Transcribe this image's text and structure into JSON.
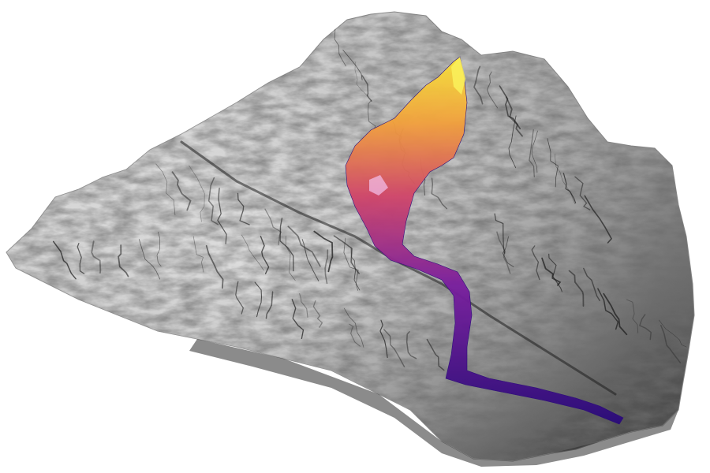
{
  "scene": {
    "subject": "terrain-relief-with-flow",
    "colors": {
      "background": "#ffffff",
      "terrain_light": "#e2e2e2",
      "terrain_mid": "#a8a8a8",
      "terrain_dark": "#3a3a3a",
      "ridge_line": "#1e1e1e",
      "flow_source": "#f7e43a",
      "flow_upper": "#f2a13d",
      "flow_middle": "#d0466a",
      "flow_lower": "#7a1f9e",
      "flow_end": "#2a0b7a"
    }
  }
}
